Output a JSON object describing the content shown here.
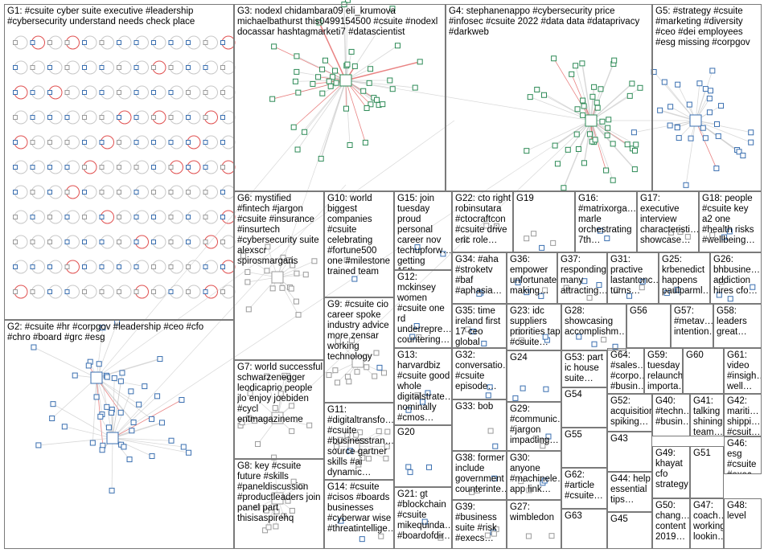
{
  "groups": [
    {
      "id": "G1",
      "text": "G1: #csuite cyber suite executive #leadership\n#cybersecurity understand needs check place"
    },
    {
      "id": "G2",
      "text": "G2: #csuite #hr #corpgov #leadership #ceo #cfo\n#chro #board #grc #esg"
    },
    {
      "id": "G3",
      "text": "G3: nodexl chidambara09 eli_krumova\nmichaelbathurst this0499154500 #csuite #nodexl\ndocassar hashtagmarketi7 #datascientist"
    },
    {
      "id": "G4",
      "text": "G4: stephanenappo #cybersecurity price\n#infosec #csuite 2022 #data data #dataprivacy\n#darkweb"
    },
    {
      "id": "G5",
      "text": "G5: #strategy #csuite\n#marketing #diversity\n#ceo #dei employees\n#esg missing #corpgov"
    },
    {
      "id": "G6",
      "text": "G6: mystified\n#fintech #jargon\n#csuite #insurance\n#insurtech\n#cybersecurity suite\nalexscr\nspirosmargaris"
    },
    {
      "id": "G7",
      "text": "G7: world successful\nschwarzenegger\nleodicaprio people\njlo enjoy joebiden\n#cycl\nentmagazineme"
    },
    {
      "id": "G8",
      "text": "G8: key #csuite\nfuture #skills\n#paneldiscussion\n#productleaders join\npanel part\nthisisaspirehq"
    },
    {
      "id": "G9",
      "text": "G9: #csuite cio\ncareer spoke\nindustry advice\nmore zensar\nworking\ntechnology"
    },
    {
      "id": "G10",
      "text": "G10: world\nbiggest\ncompanies\n#csuite\ncelebrating\n#fortune500\none #milestone\ntrained team"
    },
    {
      "id": "G11",
      "text": "G11: #digitaltransfo…\n#csuite\n#businesstran…\nsource gartner\nskills #ai\ndynamic…"
    },
    {
      "id": "G12",
      "text": "G12:\nmckinsey\nwomen\n#csuite one\nrd\nunderrepre…\ncountering…"
    },
    {
      "id": "G13",
      "text": "G13:\nharvardbiz\n#csuite good\nwhole\ndigitalstrate…\nnominally\n#cmos…"
    },
    {
      "id": "G14",
      "text": "G14: #csuite\n#cisos #boards\nbusinesses\n#cyberwar wise\n#threatintellige…"
    },
    {
      "id": "G15",
      "text": "G15: join\ntuesday\nproud\npersonal\ncareer nov\ntechupforw…\ngetting 15th…"
    },
    {
      "id": "G16",
      "text": "G16:\n#matrixorga…\nmarle\norchestrating\n7th…"
    },
    {
      "id": "G17",
      "text": "G17:\nexecutive\ninterview\ncharacteristi…\nshowcase…"
    },
    {
      "id": "G18",
      "text": "G18: people\n#csuite key\na2 one\n#health risks\n#wellbeing…"
    },
    {
      "id": "G19",
      "text": "G19"
    },
    {
      "id": "G20",
      "text": "G20"
    },
    {
      "id": "G21",
      "text": "G21: gt\n#blockchain\n#csuite\nmikequinda…\n#boardofdir…"
    },
    {
      "id": "G22",
      "text": "G22: cto right\nrobinsutara\n#ctocraftcon\n#csuite drive\neric role…"
    },
    {
      "id": "G23",
      "text": "G23: idc\nsuppliers\npriorities tap\n#csuite…"
    },
    {
      "id": "G24",
      "text": "G24"
    },
    {
      "id": "G25",
      "text": "G25:\nkrbenedict\nhappens\npaulparml…"
    },
    {
      "id": "G26",
      "text": "G26:\nbhbusine…\naddiction\nhires cfo…"
    },
    {
      "id": "G27",
      "text": "G27:\nwimbledon"
    },
    {
      "id": "G28",
      "text": "G28:\nshowcasing\naccomplishm…"
    },
    {
      "id": "G29",
      "text": "G29:\n#communic…\n#jargon\nimpacting…"
    },
    {
      "id": "G30",
      "text": "G30:\nanyone\n#machinele…\napp link…"
    },
    {
      "id": "G31",
      "text": "G31:\npractive\nlastantonc…\nturns…"
    },
    {
      "id": "G32",
      "text": "G32:\nconversatio…\n#csuite\nepisode…"
    },
    {
      "id": "G33",
      "text": "G33: bob"
    },
    {
      "id": "G34",
      "text": "G34: #aha\n#stroketv\n#baf\n#aphasia…"
    },
    {
      "id": "G35",
      "text": "G35: time\nireland first\n17 ceo\nglobal ceos…"
    },
    {
      "id": "G36",
      "text": "G36:\nempower\nunfortunate…\nmaking…"
    },
    {
      "id": "G37",
      "text": "G37:\nresponding\nmany\nattracting…"
    },
    {
      "id": "G38",
      "text": "G38: former\ninclude\ngovernment\ncounterinte…"
    },
    {
      "id": "G39",
      "text": "G39:\n#business\nsuite #risk\n#execs…"
    },
    {
      "id": "G40",
      "text": "G40:\n#techn…\n#busin…"
    },
    {
      "id": "G41",
      "text": "G41:\ntalking\nshining\nteam…"
    },
    {
      "id": "G42",
      "text": "G42:\nmariti…\nshippi…\n#csuit…"
    },
    {
      "id": "G43",
      "text": "G43"
    },
    {
      "id": "G44",
      "text": "G44: help\nessential\ntips…"
    },
    {
      "id": "G45",
      "text": "G45"
    },
    {
      "id": "G46",
      "text": "G46:\nesg\n#csuite\n#exec…"
    },
    {
      "id": "G47",
      "text": "G47:\ncoach…\nworking\nlookin…"
    },
    {
      "id": "G48",
      "text": "G48:\nlevel"
    },
    {
      "id": "G49",
      "text": "G49:\nkhayat\ncfo\nstrategy"
    },
    {
      "id": "G50",
      "text": "G50:\nchang…\ncontent\n2019…"
    },
    {
      "id": "G51",
      "text": "G51"
    },
    {
      "id": "G52",
      "text": "G52:\nacquisition\nspiking…"
    },
    {
      "id": "G53",
      "text": "G53: part\nic house\nsuite…"
    },
    {
      "id": "G54",
      "text": "G54"
    },
    {
      "id": "G55",
      "text": "G55"
    },
    {
      "id": "G56",
      "text": "G56"
    },
    {
      "id": "G57",
      "text": "G57:\n#metav…\nintention…"
    },
    {
      "id": "G58",
      "text": "G58:\nleaders\ngreat…"
    },
    {
      "id": "G59",
      "text": "G59:\ntuesday\nrelaunch\nimporta…"
    },
    {
      "id": "G60",
      "text": "G60"
    },
    {
      "id": "G61",
      "text": "G61:\nvideo\n#insigh…\nwell…"
    },
    {
      "id": "G62",
      "text": "G62:\n#article\n#csuite…"
    },
    {
      "id": "G63",
      "text": "G63"
    },
    {
      "id": "G64",
      "text": "G64:\n#sales…\n#corpo…\n#busin…"
    }
  ],
  "colors": {
    "border": "#7a7a7a",
    "edge": "#c8c8c8",
    "edge_red": "#e05050",
    "node_green": "#2e8b57",
    "node_blue": "#3a6fb0",
    "node_gray": "#9a9a9a"
  }
}
